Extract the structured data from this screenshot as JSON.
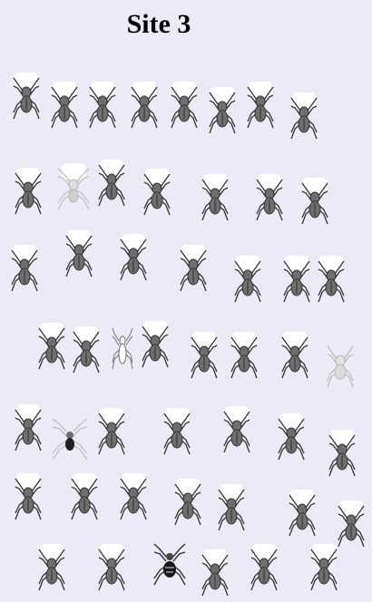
{
  "title": "Site 3",
  "colors": {
    "background": "#ecebf5",
    "spider_dark": "#333333",
    "spider_mid": "#6e6e6e",
    "spider_pale": "#b8b8b8",
    "cell_white": "#ffffff"
  },
  "icon": "spider-icon",
  "rows": [
    [
      "wolf",
      "wolf",
      "wolf",
      "wolf",
      "wolf",
      "wolf",
      "wolf",
      "wolf"
    ],
    [
      "wolf",
      "pale-long-leg",
      "wolf",
      "wolf",
      "wolf",
      "wolf",
      "wolf"
    ],
    [
      "wolf",
      "wolf",
      "wolf",
      "wolf",
      "wolf",
      "wolf",
      "wolf"
    ],
    [
      "wolf",
      "wolf",
      "slender-pale",
      "wolf",
      "wolf",
      "wolf",
      "wolf",
      "pale-wolf"
    ],
    [
      "wolf",
      "long-leg-dark-body",
      "wolf",
      "wolf",
      "wolf",
      "wolf",
      "wolf"
    ],
    [
      "wolf",
      "wolf",
      "wolf",
      "wolf",
      "wolf",
      "wolf",
      "wolf"
    ],
    [
      "wolf",
      "wolf",
      "orb-weaver",
      "wolf",
      "wolf",
      "wolf"
    ]
  ]
}
